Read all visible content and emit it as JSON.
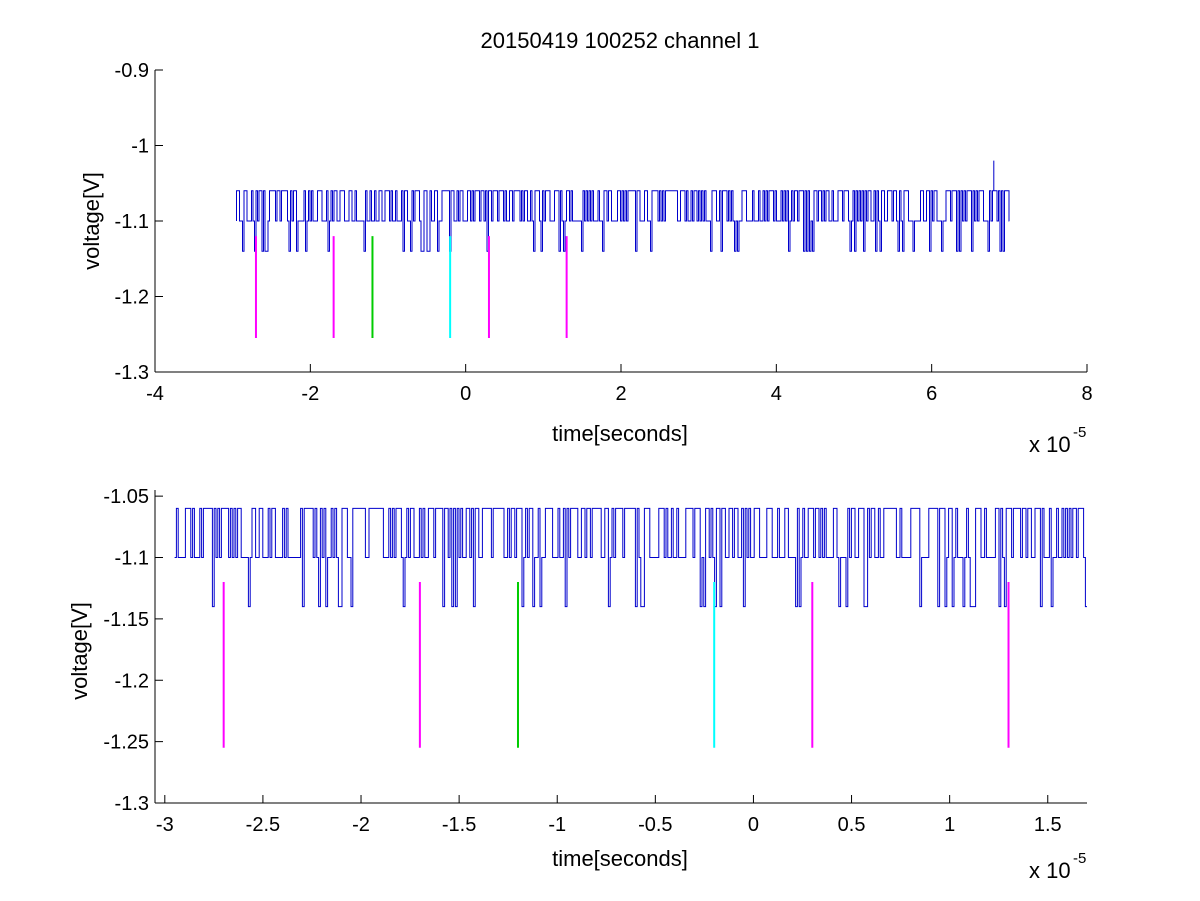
{
  "colors": {
    "background": "#ffffff",
    "signal": "#0000cc",
    "marker_magenta": "#ff00ff",
    "marker_green": "#00cc00",
    "marker_cyan": "#00ffff",
    "axes": "#000000"
  },
  "chart_data": [
    {
      "type": "line",
      "title": "20150419 100252 channel 1",
      "xlabel": "time[seconds]",
      "ylabel": "voltage[V]",
      "x_multiplier": "x 10",
      "x_exponent": "-5",
      "xlim": [
        -4,
        8
      ],
      "ylim": [
        -1.3,
        -0.9
      ],
      "xticks": [
        "-4",
        "-2",
        "0",
        "2",
        "4",
        "6",
        "8"
      ],
      "yticks": [
        "-0.9",
        "-1",
        "-1.1",
        "-1.2",
        "-1.3"
      ],
      "grid": false,
      "series": [
        {
          "x_range": [
            -2.95,
            7.0
          ],
          "baseline": -1.1,
          "levels": [
            -1.06,
            -1.1,
            -1.14
          ],
          "spike": {
            "x": 6.8,
            "y": -1.02
          }
        }
      ],
      "markers": [
        {
          "x": -2.7,
          "y_top": -1.12,
          "y_bottom": -1.255,
          "color": "magenta"
        },
        {
          "x": -1.7,
          "y_top": -1.12,
          "y_bottom": -1.255,
          "color": "magenta"
        },
        {
          "x": -1.2,
          "y_top": -1.12,
          "y_bottom": -1.255,
          "color": "green"
        },
        {
          "x": -0.2,
          "y_top": -1.12,
          "y_bottom": -1.255,
          "color": "cyan"
        },
        {
          "x": 0.3,
          "y_top": -1.12,
          "y_bottom": -1.255,
          "color": "magenta"
        },
        {
          "x": 1.3,
          "y_top": -1.12,
          "y_bottom": -1.255,
          "color": "magenta"
        }
      ]
    },
    {
      "type": "line",
      "title": "",
      "xlabel": "time[seconds]",
      "ylabel": "voltage[V]",
      "x_multiplier": "x 10",
      "x_exponent": "-5",
      "xlim": [
        -3.05,
        1.7
      ],
      "ylim": [
        -1.3,
        -1.045
      ],
      "xticks": [
        "-3",
        "-2.5",
        "-2",
        "-1.5",
        "-1",
        "-0.5",
        "0",
        "0.5",
        "1",
        "1.5"
      ],
      "yticks": [
        "-1.05",
        "-1.1",
        "-1.15",
        "-1.2",
        "-1.25",
        "-1.3"
      ],
      "grid": false,
      "series": [
        {
          "x_range": [
            -2.95,
            1.7
          ],
          "baseline": -1.1,
          "levels": [
            -1.06,
            -1.1,
            -1.14
          ]
        }
      ],
      "markers": [
        {
          "x": -2.7,
          "y_top": -1.12,
          "y_bottom": -1.255,
          "color": "magenta"
        },
        {
          "x": -1.7,
          "y_top": -1.12,
          "y_bottom": -1.255,
          "color": "magenta"
        },
        {
          "x": -1.2,
          "y_top": -1.12,
          "y_bottom": -1.255,
          "color": "green"
        },
        {
          "x": -0.2,
          "y_top": -1.12,
          "y_bottom": -1.255,
          "color": "cyan"
        },
        {
          "x": 0.3,
          "y_top": -1.12,
          "y_bottom": -1.255,
          "color": "magenta"
        },
        {
          "x": 1.3,
          "y_top": -1.12,
          "y_bottom": -1.255,
          "color": "magenta"
        }
      ]
    }
  ]
}
